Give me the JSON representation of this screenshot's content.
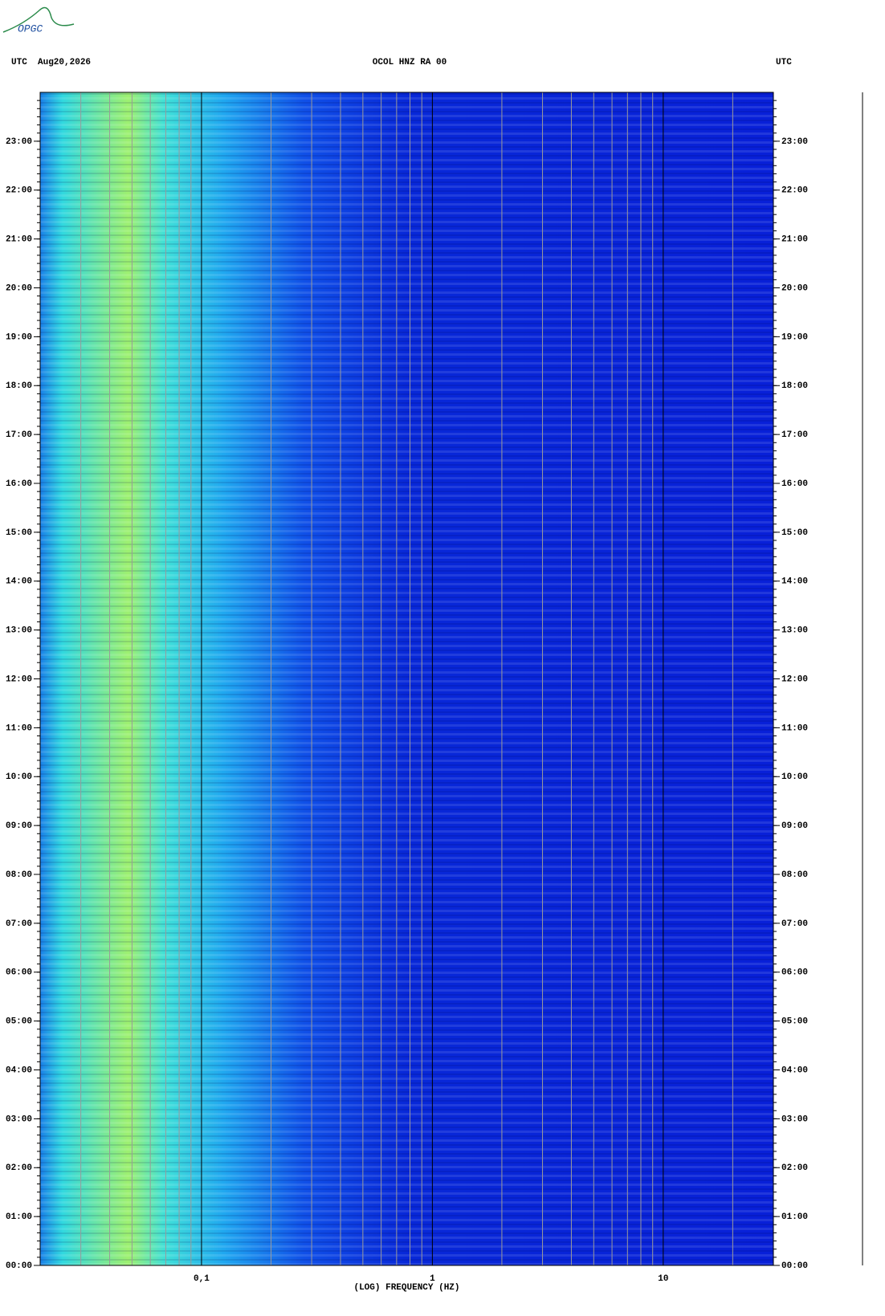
{
  "logo": "OPGC",
  "chart_data": {
    "type": "spectrogram",
    "title": "OCOL HNZ RA 00",
    "left_header": "UTC  Aug20,2026",
    "right_header": "UTC",
    "x_label": "(LOG) FREQUENCY (HZ)",
    "log_x": true,
    "grid": true,
    "xlim": [
      0.02,
      30
    ],
    "xticks": [
      {
        "value": 0.1,
        "label": "0,1"
      },
      1,
      10
    ],
    "ylim": [
      0,
      24
    ],
    "yticks": [
      {
        "value": 0,
        "label": "00:00"
      },
      {
        "value": 1,
        "label": "01:00"
      },
      {
        "value": 2,
        "label": "02:00"
      },
      {
        "value": 3,
        "label": "03:00"
      },
      {
        "value": 4,
        "label": "04:00"
      },
      {
        "value": 5,
        "label": "05:00"
      },
      {
        "value": 6,
        "label": "06:00"
      },
      {
        "value": 7,
        "label": "07:00"
      },
      {
        "value": 8,
        "label": "08:00"
      },
      {
        "value": 9,
        "label": "09:00"
      },
      {
        "value": 10,
        "label": "10:00"
      },
      {
        "value": 11,
        "label": "11:00"
      },
      {
        "value": 12,
        "label": "12:00"
      },
      {
        "value": 13,
        "label": "13:00"
      },
      {
        "value": 14,
        "label": "14:00"
      },
      {
        "value": 15,
        "label": "15:00"
      },
      {
        "value": 16,
        "label": "16:00"
      },
      {
        "value": 17,
        "label": "17:00"
      },
      {
        "value": 18,
        "label": "18:00"
      },
      {
        "value": 19,
        "label": "19:00"
      },
      {
        "value": 20,
        "label": "20:00"
      },
      {
        "value": 21,
        "label": "21:00"
      },
      {
        "value": 22,
        "label": "22:00"
      },
      {
        "value": 23,
        "label": "23:00"
      }
    ]
  }
}
